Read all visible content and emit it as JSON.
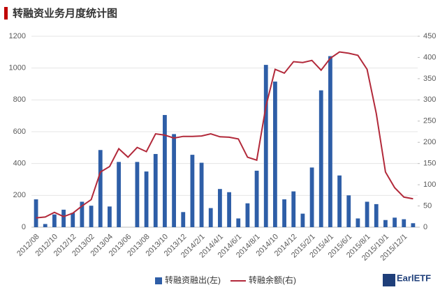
{
  "chart_data": {
    "type": "bar-line",
    "title": "转融资业务月度统计图",
    "categories": [
      "2012/08",
      null,
      "2012/10",
      null,
      "2012/12",
      null,
      "2013/02",
      null,
      "2013/04",
      null,
      "2013/06",
      null,
      "2013/08",
      null,
      "2013/10",
      null,
      "2013/12",
      null,
      "2014/2/1",
      null,
      "2014/4/1",
      null,
      "2014/6/1",
      null,
      "2014/8/1",
      null,
      "2014/10",
      null,
      "2014/12",
      null,
      "2015/2/1",
      null,
      "2015/4/1",
      null,
      "2015/6/1",
      null,
      "2015/8/1",
      null,
      "2015/10/1",
      null,
      "2015/12/1",
      null
    ],
    "series": [
      {
        "name": "转融资融出(左)",
        "type": "bar",
        "color": "#2e5ea7",
        "values": [
          175,
          20,
          80,
          110,
          90,
          160,
          135,
          485,
          130,
          410,
          0,
          410,
          350,
          460,
          705,
          585,
          95,
          455,
          405,
          120,
          240,
          220,
          55,
          150,
          355,
          1020,
          915,
          175,
          225,
          85,
          375,
          860,
          1075,
          325,
          200,
          55,
          160,
          145,
          45,
          60,
          50,
          25
        ]
      },
      {
        "name": "转融余额(右)",
        "type": "line",
        "axis": "y2",
        "color": "#b2293a",
        "values": [
          22,
          24,
          35,
          25,
          33,
          50,
          65,
          130,
          143,
          185,
          165,
          188,
          178,
          220,
          217,
          210,
          214,
          214,
          215,
          220,
          213,
          212,
          208,
          165,
          158,
          285,
          372,
          363,
          390,
          388,
          393,
          370,
          398,
          413,
          410,
          405,
          372,
          268,
          130,
          93,
          71,
          67
        ]
      }
    ],
    "ylim": [
      0,
      1200
    ],
    "yticks": [
      0,
      200,
      400,
      600,
      800,
      1000,
      1200
    ],
    "y2lim": [
      0,
      450
    ],
    "y2ticks": [
      0,
      50,
      100,
      150,
      200,
      250,
      300,
      350,
      400,
      450
    ],
    "grid": true,
    "legend": "bottom",
    "logo": "EarlETF"
  }
}
